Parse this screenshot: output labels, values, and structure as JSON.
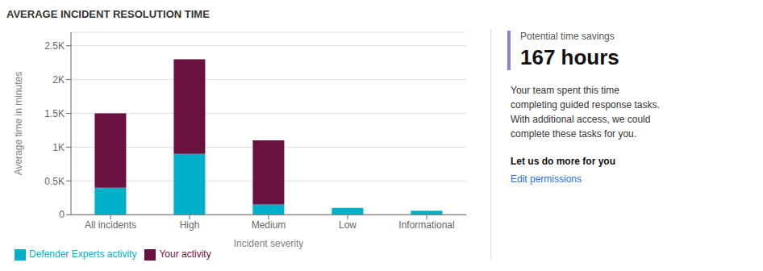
{
  "chart_data": {
    "type": "bar",
    "title": "AVERAGE INCIDENT RESOLUTION TIME",
    "categories": [
      "All incidents",
      "High",
      "Medium",
      "Low",
      "Informational"
    ],
    "series": [
      {
        "name": "Defender Experts activity",
        "color": "#00B0C8",
        "values": [
          400,
          900,
          150,
          100,
          60
        ]
      },
      {
        "name": "Your activity",
        "color": "#6B1140",
        "values": [
          1100,
          1400,
          950,
          0,
          0
        ]
      }
    ],
    "stacked": true,
    "xlabel": "Incident severity",
    "ylabel": "Average time in minutes",
    "ylim": [
      0,
      2700
    ],
    "yticks": [
      0,
      {
        "value": 500,
        "label": "0.5K"
      },
      {
        "value": 1000,
        "label": "1K"
      },
      {
        "value": 1500,
        "label": "1.5K"
      },
      {
        "value": 2000,
        "label": "2K"
      },
      {
        "value": 2500,
        "label": "2.5K"
      }
    ],
    "grid": true,
    "legend": "bottom left",
    "annotations": [
      "Potential time savings",
      "167 hours",
      "Your team spent this time",
      "completing guided response tasks.",
      "With additional access, we could",
      "complete these tasks for you.",
      "Let us do more for you",
      "Edit permissions"
    ]
  }
}
